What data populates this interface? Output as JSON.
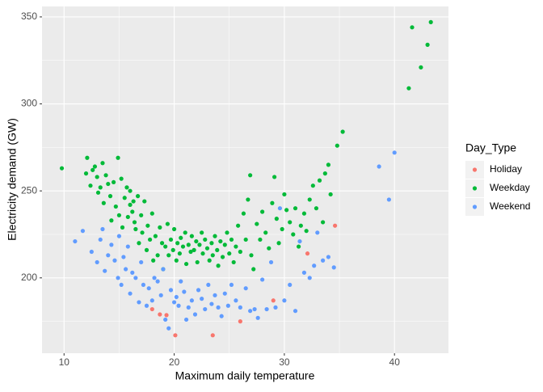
{
  "chart_data": {
    "type": "scatter",
    "xlabel": "Maximum daily temperature",
    "ylabel": "Electricity demand (GW)",
    "legend_title": "Day_Type",
    "legend": "right",
    "grid": true,
    "xlim": [
      8.0,
      44.9
    ],
    "ylim": [
      156.7,
      356
    ],
    "xticks": [
      10,
      20,
      30,
      40
    ],
    "yticks": [
      200,
      250,
      300,
      350
    ],
    "series": [
      {
        "name": "Holiday",
        "color": "#F8766D",
        "x": [
          19.3,
          20.1,
          23.5,
          26.0,
          29.0,
          32.1,
          34.6,
          18.0,
          18.7
        ],
        "y": [
          178.6,
          167,
          167,
          175,
          187,
          214,
          230,
          182,
          179
        ]
      },
      {
        "name": "Weekday",
        "color": "#00BA38",
        "x": [
          9.8,
          12,
          12.1,
          12.4,
          12.6,
          12.8,
          13,
          13.1,
          13.3,
          13.5,
          13.6,
          13.8,
          14,
          14.2,
          14.3,
          14.5,
          14.7,
          14.9,
          15,
          15.2,
          15.3,
          15.5,
          15.7,
          15.8,
          16,
          16,
          16.2,
          16.3,
          16.4,
          16.5,
          16.7,
          16.8,
          17,
          17.1,
          17.3,
          17.5,
          17.6,
          17.8,
          18,
          18.1,
          18.3,
          18.5,
          18.7,
          18.9,
          19,
          19.2,
          19.4,
          19.5,
          19.7,
          19.9,
          20,
          20.2,
          20.3,
          20.5,
          20.6,
          20.8,
          21,
          21.1,
          21.3,
          21.5,
          21.6,
          21.8,
          22,
          22.1,
          22.3,
          22.5,
          22.6,
          22.8,
          23,
          23.2,
          23.4,
          23.5,
          23.7,
          23.9,
          24,
          24.2,
          24.4,
          24.6,
          24.8,
          25,
          25.2,
          25.4,
          25.6,
          25.8,
          26,
          26.3,
          26.5,
          26.7,
          26.9,
          27,
          27.2,
          27.5,
          27.8,
          28,
          28.3,
          28.6,
          28.9,
          29.1,
          29.3,
          29.5,
          29.8,
          30,
          30.2,
          30.5,
          30.8,
          31,
          31.3,
          31.5,
          31.8,
          32,
          32.3,
          32.6,
          32.9,
          33.2,
          33.5,
          33.7,
          34,
          34.2,
          34.8,
          35.3,
          41.3,
          41.6,
          42.4,
          43,
          43.3
        ],
        "y": [
          263,
          260,
          269,
          253,
          262,
          264,
          258,
          249,
          252,
          266,
          243,
          259,
          254,
          247,
          233,
          255,
          241,
          269,
          236,
          257,
          229,
          246,
          252,
          235,
          250,
          242,
          238,
          244,
          232,
          228,
          247,
          220,
          236,
          226,
          244,
          216,
          230,
          222,
          237,
          210,
          224,
          213,
          229,
          220,
          205,
          218,
          231,
          213,
          222,
          216,
          228,
          210,
          220,
          214,
          223,
          218,
          226,
          208,
          219,
          215,
          224,
          216,
          221,
          209,
          219,
          226,
          214,
          222,
          217,
          210,
          220,
          213,
          224,
          216,
          207,
          221,
          212,
          219,
          226,
          214,
          222,
          209,
          218,
          230,
          215,
          237,
          222,
          245,
          259,
          213,
          205,
          231,
          222,
          238,
          226,
          217,
          243,
          258,
          234,
          220,
          228,
          248,
          239,
          232,
          225,
          240,
          218,
          230,
          237,
          227,
          245,
          253,
          240,
          256,
          232,
          260,
          265,
          248,
          276,
          284,
          309,
          344,
          321,
          334,
          347
        ]
      },
      {
        "name": "Weekend",
        "color": "#619CFF",
        "x": [
          11,
          11.7,
          12.5,
          13,
          13.3,
          13.5,
          13.7,
          14,
          14.3,
          14.6,
          14.9,
          15,
          15.2,
          15.4,
          15.6,
          15.8,
          16,
          16.2,
          16.5,
          16.8,
          17,
          17.2,
          17.5,
          17.7,
          18,
          18.2,
          18.5,
          18.8,
          19,
          19.2,
          19.5,
          19.7,
          20,
          20.2,
          20.4,
          20.6,
          20.9,
          21.1,
          21.3,
          21.6,
          21.9,
          22.2,
          22.5,
          22.8,
          23.1,
          23.4,
          23.7,
          24,
          24.3,
          24.6,
          24.9,
          25.2,
          25.6,
          26,
          26.5,
          26.9,
          27.3,
          27.6,
          28,
          28.4,
          28.8,
          29.2,
          29.6,
          30,
          30.5,
          31,
          31.4,
          31.8,
          32.3,
          32.7,
          33,
          33.5,
          34,
          34.5,
          38.6,
          39.5,
          40
        ],
        "y": [
          221,
          227,
          215,
          209,
          222,
          228,
          204,
          213,
          219,
          210,
          200,
          224,
          196,
          212,
          205,
          218,
          191,
          203,
          200,
          186,
          209,
          196,
          184,
          194,
          187,
          200,
          198,
          190,
          205,
          176,
          171,
          193,
          186,
          189,
          184,
          198,
          192,
          176,
          183,
          187,
          179,
          193,
          188,
          182,
          196,
          185,
          190,
          183,
          178,
          191,
          184,
          196,
          187,
          183,
          194,
          181,
          182,
          177,
          199,
          182,
          209,
          183,
          240,
          187,
          196,
          181,
          221,
          203,
          200,
          207,
          226,
          210,
          212,
          206,
          264,
          245,
          272
        ]
      }
    ]
  }
}
